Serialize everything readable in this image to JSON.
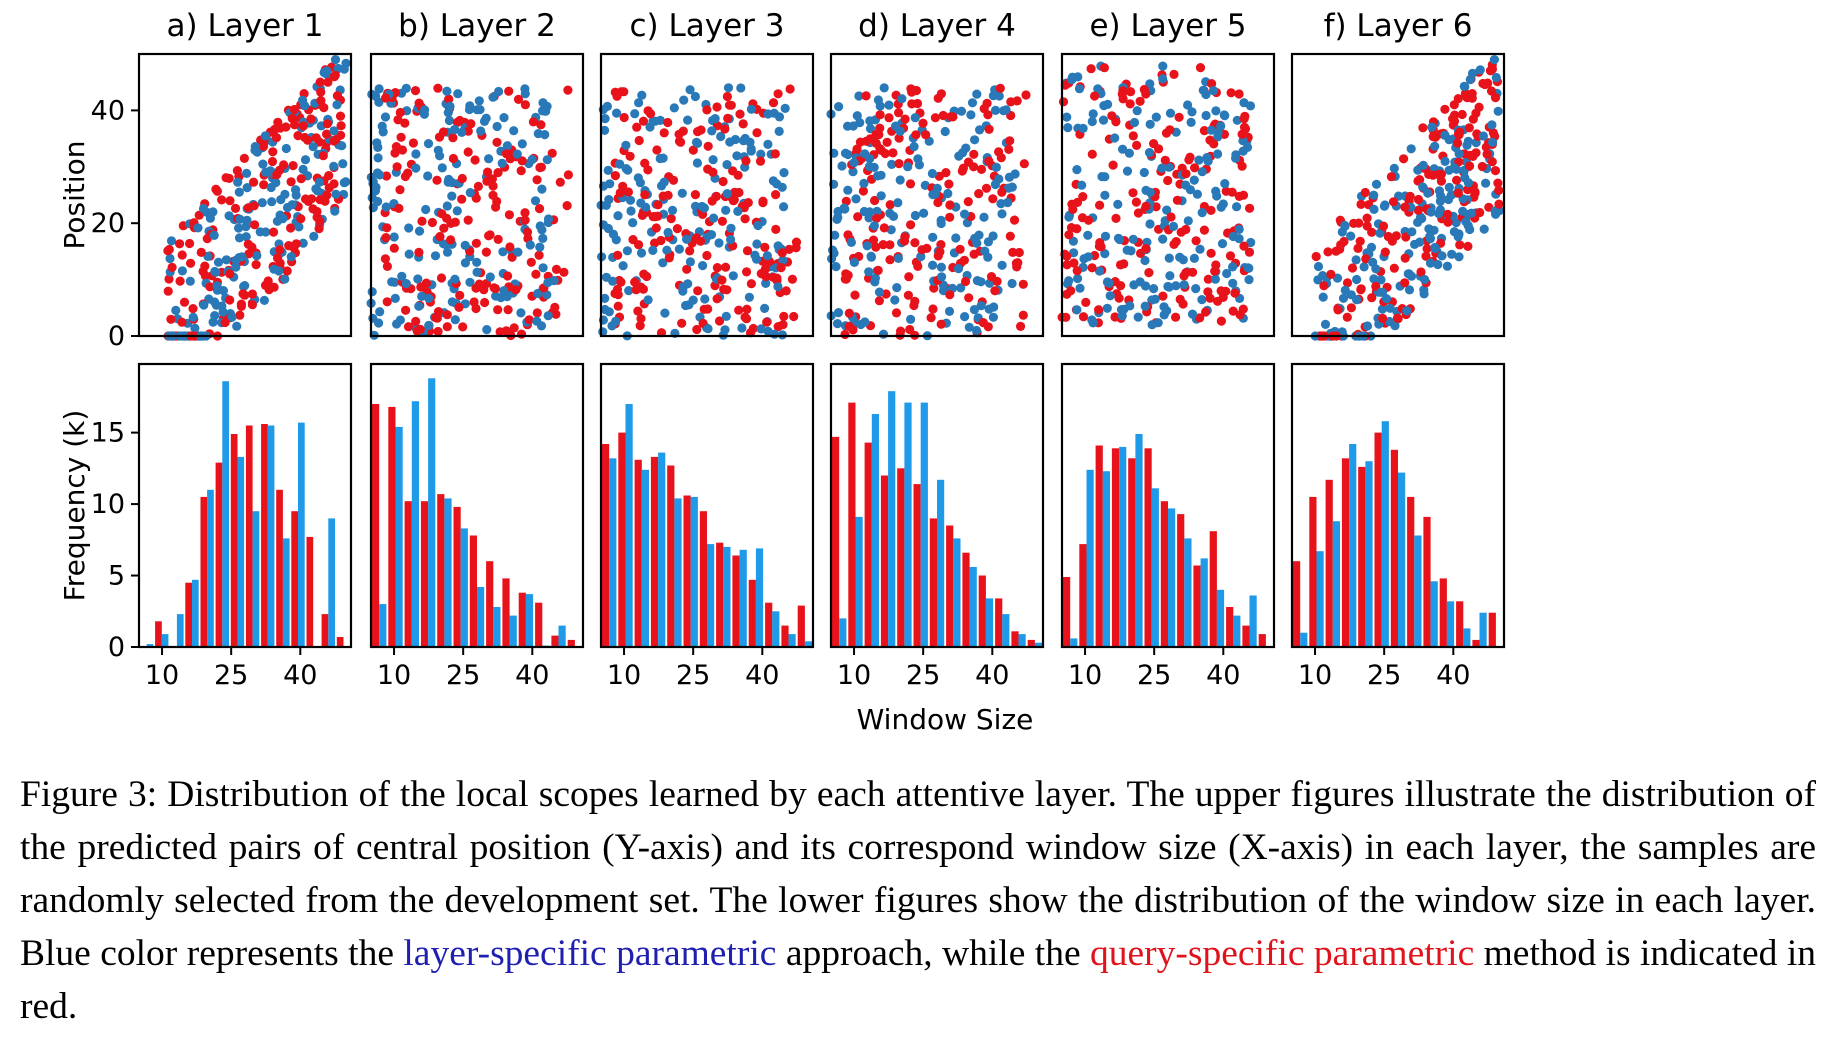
{
  "chart_data": {
    "type": "scatter+bar",
    "xlabel": "Window Size",
    "ylabel_top": "Position",
    "ylabel_bottom": "Frequency (k)",
    "scatter_xlim": [
      5,
      51
    ],
    "scatter_ylim": [
      0,
      50
    ],
    "scatter_yticks": [
      0,
      20,
      40
    ],
    "bar_ylim": [
      0,
      19.8
    ],
    "bar_yticks": [
      0,
      5,
      10,
      15
    ],
    "xticks": [
      10,
      25,
      40
    ],
    "colors": {
      "red": "#e8121b",
      "blue": "#2979b8",
      "bar_blue": "#1f9ae8"
    },
    "series_colors": [
      "red = query-specific parametric",
      "blue = layer-specific parametric"
    ],
    "layers": [
      {
        "title": "a) Layer 1",
        "scatter_trend": "increasing",
        "bars": [
          [
            0,
            0.2
          ],
          [
            1.8,
            0.9
          ],
          [
            0,
            2.3
          ],
          [
            4.5,
            4.7
          ],
          [
            10.5,
            11.0
          ],
          [
            12.9,
            18.6
          ],
          [
            14.9,
            13.3
          ],
          [
            15.5,
            9.5
          ],
          [
            15.6,
            15.5
          ],
          [
            11.0,
            7.6
          ],
          [
            9.5,
            15.7
          ],
          [
            7.7,
            0
          ],
          [
            2.3,
            9.0
          ],
          [
            0.7,
            0
          ]
        ]
      },
      {
        "title": "b) Layer 2",
        "scatter_trend": "diffuse",
        "bars": [
          [
            17.0,
            3.0
          ],
          [
            16.8,
            15.4
          ],
          [
            10.2,
            17.2
          ],
          [
            10.2,
            18.8
          ],
          [
            10.7,
            10.4
          ],
          [
            9.8,
            8.3
          ],
          [
            7.8,
            4.2
          ],
          [
            6.0,
            2.8
          ],
          [
            4.8,
            2.2
          ],
          [
            3.8,
            3.7
          ],
          [
            3.1,
            0.1
          ],
          [
            0.8,
            1.5
          ],
          [
            0.5,
            0
          ]
        ]
      },
      {
        "title": "c) Layer 3",
        "scatter_trend": "diffuse",
        "bars": [
          [
            14.2,
            13.2
          ],
          [
            15.0,
            17.0
          ],
          [
            13.1,
            12.4
          ],
          [
            13.3,
            13.6
          ],
          [
            12.7,
            10.4
          ],
          [
            10.6,
            10.5
          ],
          [
            9.5,
            7.2
          ],
          [
            7.3,
            7.0
          ],
          [
            6.4,
            6.8
          ],
          [
            4.7,
            6.9
          ],
          [
            3.1,
            2.5
          ],
          [
            1.5,
            0.9
          ],
          [
            2.9,
            0.4
          ]
        ]
      },
      {
        "title": "d) Layer 4",
        "scatter_trend": "diffuse",
        "bars": [
          [
            14.7,
            2.0
          ],
          [
            17.1,
            9.1
          ],
          [
            14.3,
            16.3
          ],
          [
            12.0,
            17.9
          ],
          [
            12.5,
            17.1
          ],
          [
            11.4,
            17.1
          ],
          [
            9.0,
            11.7
          ],
          [
            8.5,
            7.6
          ],
          [
            6.6,
            5.6
          ],
          [
            5.0,
            3.4
          ],
          [
            3.4,
            2.3
          ],
          [
            1.1,
            0.9
          ],
          [
            0.5,
            0.3
          ]
        ]
      },
      {
        "title": "e) Layer 5",
        "scatter_trend": "wide",
        "bars": [
          [
            4.9,
            0.6
          ],
          [
            7.2,
            12.4
          ],
          [
            14.1,
            12.3
          ],
          [
            13.9,
            14.0
          ],
          [
            13.2,
            14.9
          ],
          [
            13.9,
            11.1
          ],
          [
            10.2,
            9.7
          ],
          [
            9.3,
            7.6
          ],
          [
            5.7,
            6.2
          ],
          [
            8.1,
            4.0
          ],
          [
            2.8,
            2.2
          ],
          [
            1.5,
            3.6
          ],
          [
            0.9,
            0
          ]
        ]
      },
      {
        "title": "f) Layer 6",
        "scatter_trend": "increasing",
        "bars": [
          [
            6.0,
            1.0
          ],
          [
            10.5,
            6.7
          ],
          [
            11.7,
            8.8
          ],
          [
            13.2,
            14.2
          ],
          [
            12.6,
            13.0
          ],
          [
            15.0,
            15.8
          ],
          [
            13.8,
            12.2
          ],
          [
            10.5,
            7.8
          ],
          [
            9.1,
            4.6
          ],
          [
            4.8,
            3.2
          ],
          [
            3.2,
            1.3
          ],
          [
            0.5,
            2.4
          ],
          [
            2.4,
            0
          ]
        ]
      }
    ]
  },
  "caption": {
    "main": "Figure 3:  Distribution of the local scopes learned by each attentive layer. The upper figures illustrate the distribution of the predicted pairs of central position (Y-axis) and its correspond window size (X-axis) in each layer, the samples are randomly selected from the development set.  The lower figures show the distribution of the window size in each layer.  Blue color represents the ",
    "blue": "layer-specific parametric",
    "middle": " approach, while the ",
    "red": "query-specific parametric",
    "end": " method is indicated in red."
  }
}
